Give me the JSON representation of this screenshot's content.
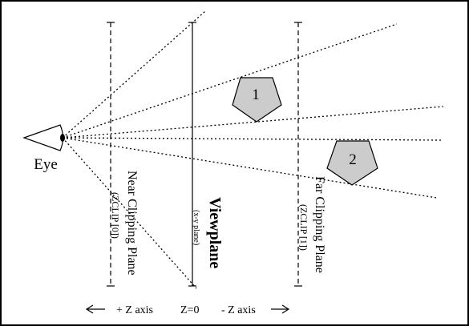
{
  "labels": {
    "eye": "Eye",
    "near_plane": "Near Clipping Plane",
    "near_zclip": "(ZCLIP [0])",
    "viewplane": "Viewplane",
    "viewplane_sub": "(x-y plane)",
    "far_plane": "Far Clipping Plane",
    "far_zclip": "(ZCLIP [1])",
    "object_1": "1",
    "object_2": "2"
  },
  "axis": {
    "left_arrow": "←",
    "plus_z": "+ Z axis",
    "z_zero": "Z=0",
    "minus_z": "- Z axis",
    "right_arrow": "→"
  },
  "colors": {
    "object_fill": "#cccccc",
    "stroke": "#000000"
  }
}
